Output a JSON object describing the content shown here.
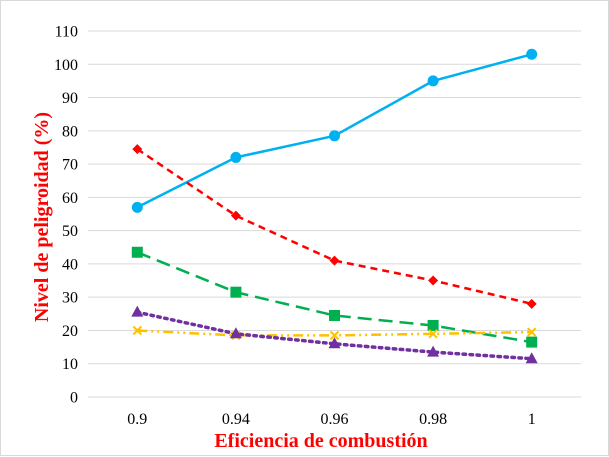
{
  "chart_data": {
    "type": "line",
    "x": [
      "0.9",
      "0.94",
      "0.96",
      "0.98",
      "1"
    ],
    "xlabel": "Eficiencia de combustión",
    "ylabel": "Nivel de peligroidad  (%)",
    "ylim": [
      0,
      110
    ],
    "yticks": [
      "0",
      "10",
      "20",
      "30",
      "40",
      "50",
      "60",
      "70",
      "80",
      "90",
      "100",
      "110"
    ],
    "grid": "horizontal",
    "legend": "none",
    "series": [
      {
        "values": [
          57,
          72,
          78.5,
          95,
          103
        ],
        "color": "#00b0f0",
        "dash": "solid",
        "marker": "circle"
      },
      {
        "values": [
          74.5,
          54.5,
          41,
          35,
          28
        ],
        "color": "#ff0000",
        "dash": "short-dash",
        "marker": "diamond"
      },
      {
        "values": [
          43.5,
          31.5,
          24.5,
          21.5,
          16.5
        ],
        "color": "#00b050",
        "dash": "long-dash",
        "marker": "square"
      },
      {
        "values": [
          20,
          18.5,
          18.5,
          19,
          19.5
        ],
        "color": "#ffc000",
        "dash": "dash-dot-dot",
        "marker": "x"
      },
      {
        "values": [
          25.5,
          19,
          16,
          13.5,
          11.5
        ],
        "color": "#7030a0",
        "dash": "dot",
        "marker": "triangle"
      }
    ]
  }
}
